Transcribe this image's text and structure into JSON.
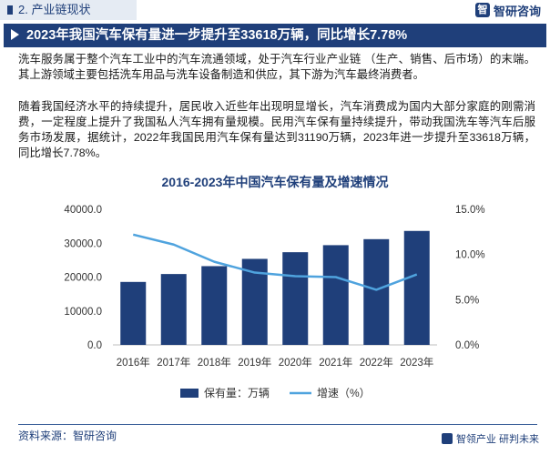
{
  "header": {
    "section_label": "2. 产业链现状",
    "logo_text": "智研咨询",
    "headline": "2023年我国汽车保有量进一步提升至33618万辆，同比增长7.78%"
  },
  "paragraphs": [
    "洗车服务属于整个汽车工业中的汽车流通领域，处于汽车行业产业链 （生产、销售、后市场）的末端。其上游领域主要包括洗车用品与洗车设备制造和供应，其下游为汽车最终消费者。",
    "随着我国经济水平的持续提升，居民收入近些年出现明显增长，汽车消费成为国内大部分家庭的刚需消费，一定程度上提升了我国私人汽车拥有量规模。民用汽车保有量持续提升，带动我国洗车等汽车后服务市场发展，据统计，2022年我国民用汽车保有量达到31190万辆，2023年进一步提升至33618万辆，同比增长7.78%。"
  ],
  "chart_data": {
    "type": "bar",
    "title": "2016-2023年中国汽车保有量及增速情况",
    "categories": [
      "2016年",
      "2017年",
      "2018年",
      "2019年",
      "2020年",
      "2021年",
      "2022年",
      "2023年"
    ],
    "series": [
      {
        "name": "保有量：万辆",
        "type": "bar",
        "axis": "left",
        "values": [
          18575,
          20907,
          23231,
          25376,
          27341,
          29419,
          31190,
          33618
        ]
      },
      {
        "name": "增速（%）",
        "type": "line",
        "axis": "right",
        "values": [
          12.2,
          11.1,
          9.2,
          8.0,
          7.6,
          7.5,
          6.1,
          7.8
        ]
      }
    ],
    "y_left": {
      "ticks": [
        "0.0",
        "10000.0",
        "20000.0",
        "30000.0",
        "40000.0"
      ],
      "min": 0,
      "max": 40000
    },
    "y_right": {
      "ticks": [
        "0.0%",
        "5.0%",
        "10.0%",
        "15.0%"
      ],
      "min": 0,
      "max": 15
    },
    "grid": false,
    "legend": "bottom",
    "colors": {
      "bar": "#1f3f7a",
      "line": "#4fa3de"
    }
  },
  "footer": {
    "source": "资料来源：智研咨询",
    "logo_text": "智领产业 研判未来"
  }
}
